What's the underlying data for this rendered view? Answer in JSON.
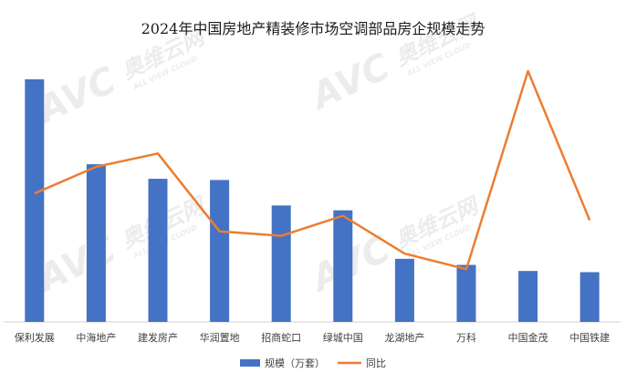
{
  "chart_data": {
    "type": "bar",
    "title": "2024年中国房地产精装修市场空调部品房企规模走势",
    "categories": [
      "保利发展",
      "中海地产",
      "建发房产",
      "华润置地",
      "招商蛇口",
      "绿城中国",
      "龙湖地产",
      "万科",
      "中国金茂",
      "中国铁建"
    ],
    "series": [
      {
        "name": "规模（万套）",
        "kind": "bar",
        "axis": "left",
        "color": "#4472C4",
        "values": [
          100,
          65,
          59,
          58.5,
          48,
          46,
          26,
          23.5,
          21,
          20.5
        ]
      },
      {
        "name": "同比",
        "kind": "line",
        "axis": "right",
        "color": "#ED7D31",
        "values": [
          45,
          57,
          63,
          28,
          26,
          35,
          18,
          11,
          100,
          33
        ]
      }
    ],
    "ylim": [
      0,
      100
    ],
    "y2lim": [
      0,
      100
    ],
    "grid": false,
    "legend_position": "bottom"
  },
  "watermark": {
    "brand_cn": "奥维云网",
    "brand_en": "ALL VIEW CLOUD",
    "mark": "AVC"
  }
}
